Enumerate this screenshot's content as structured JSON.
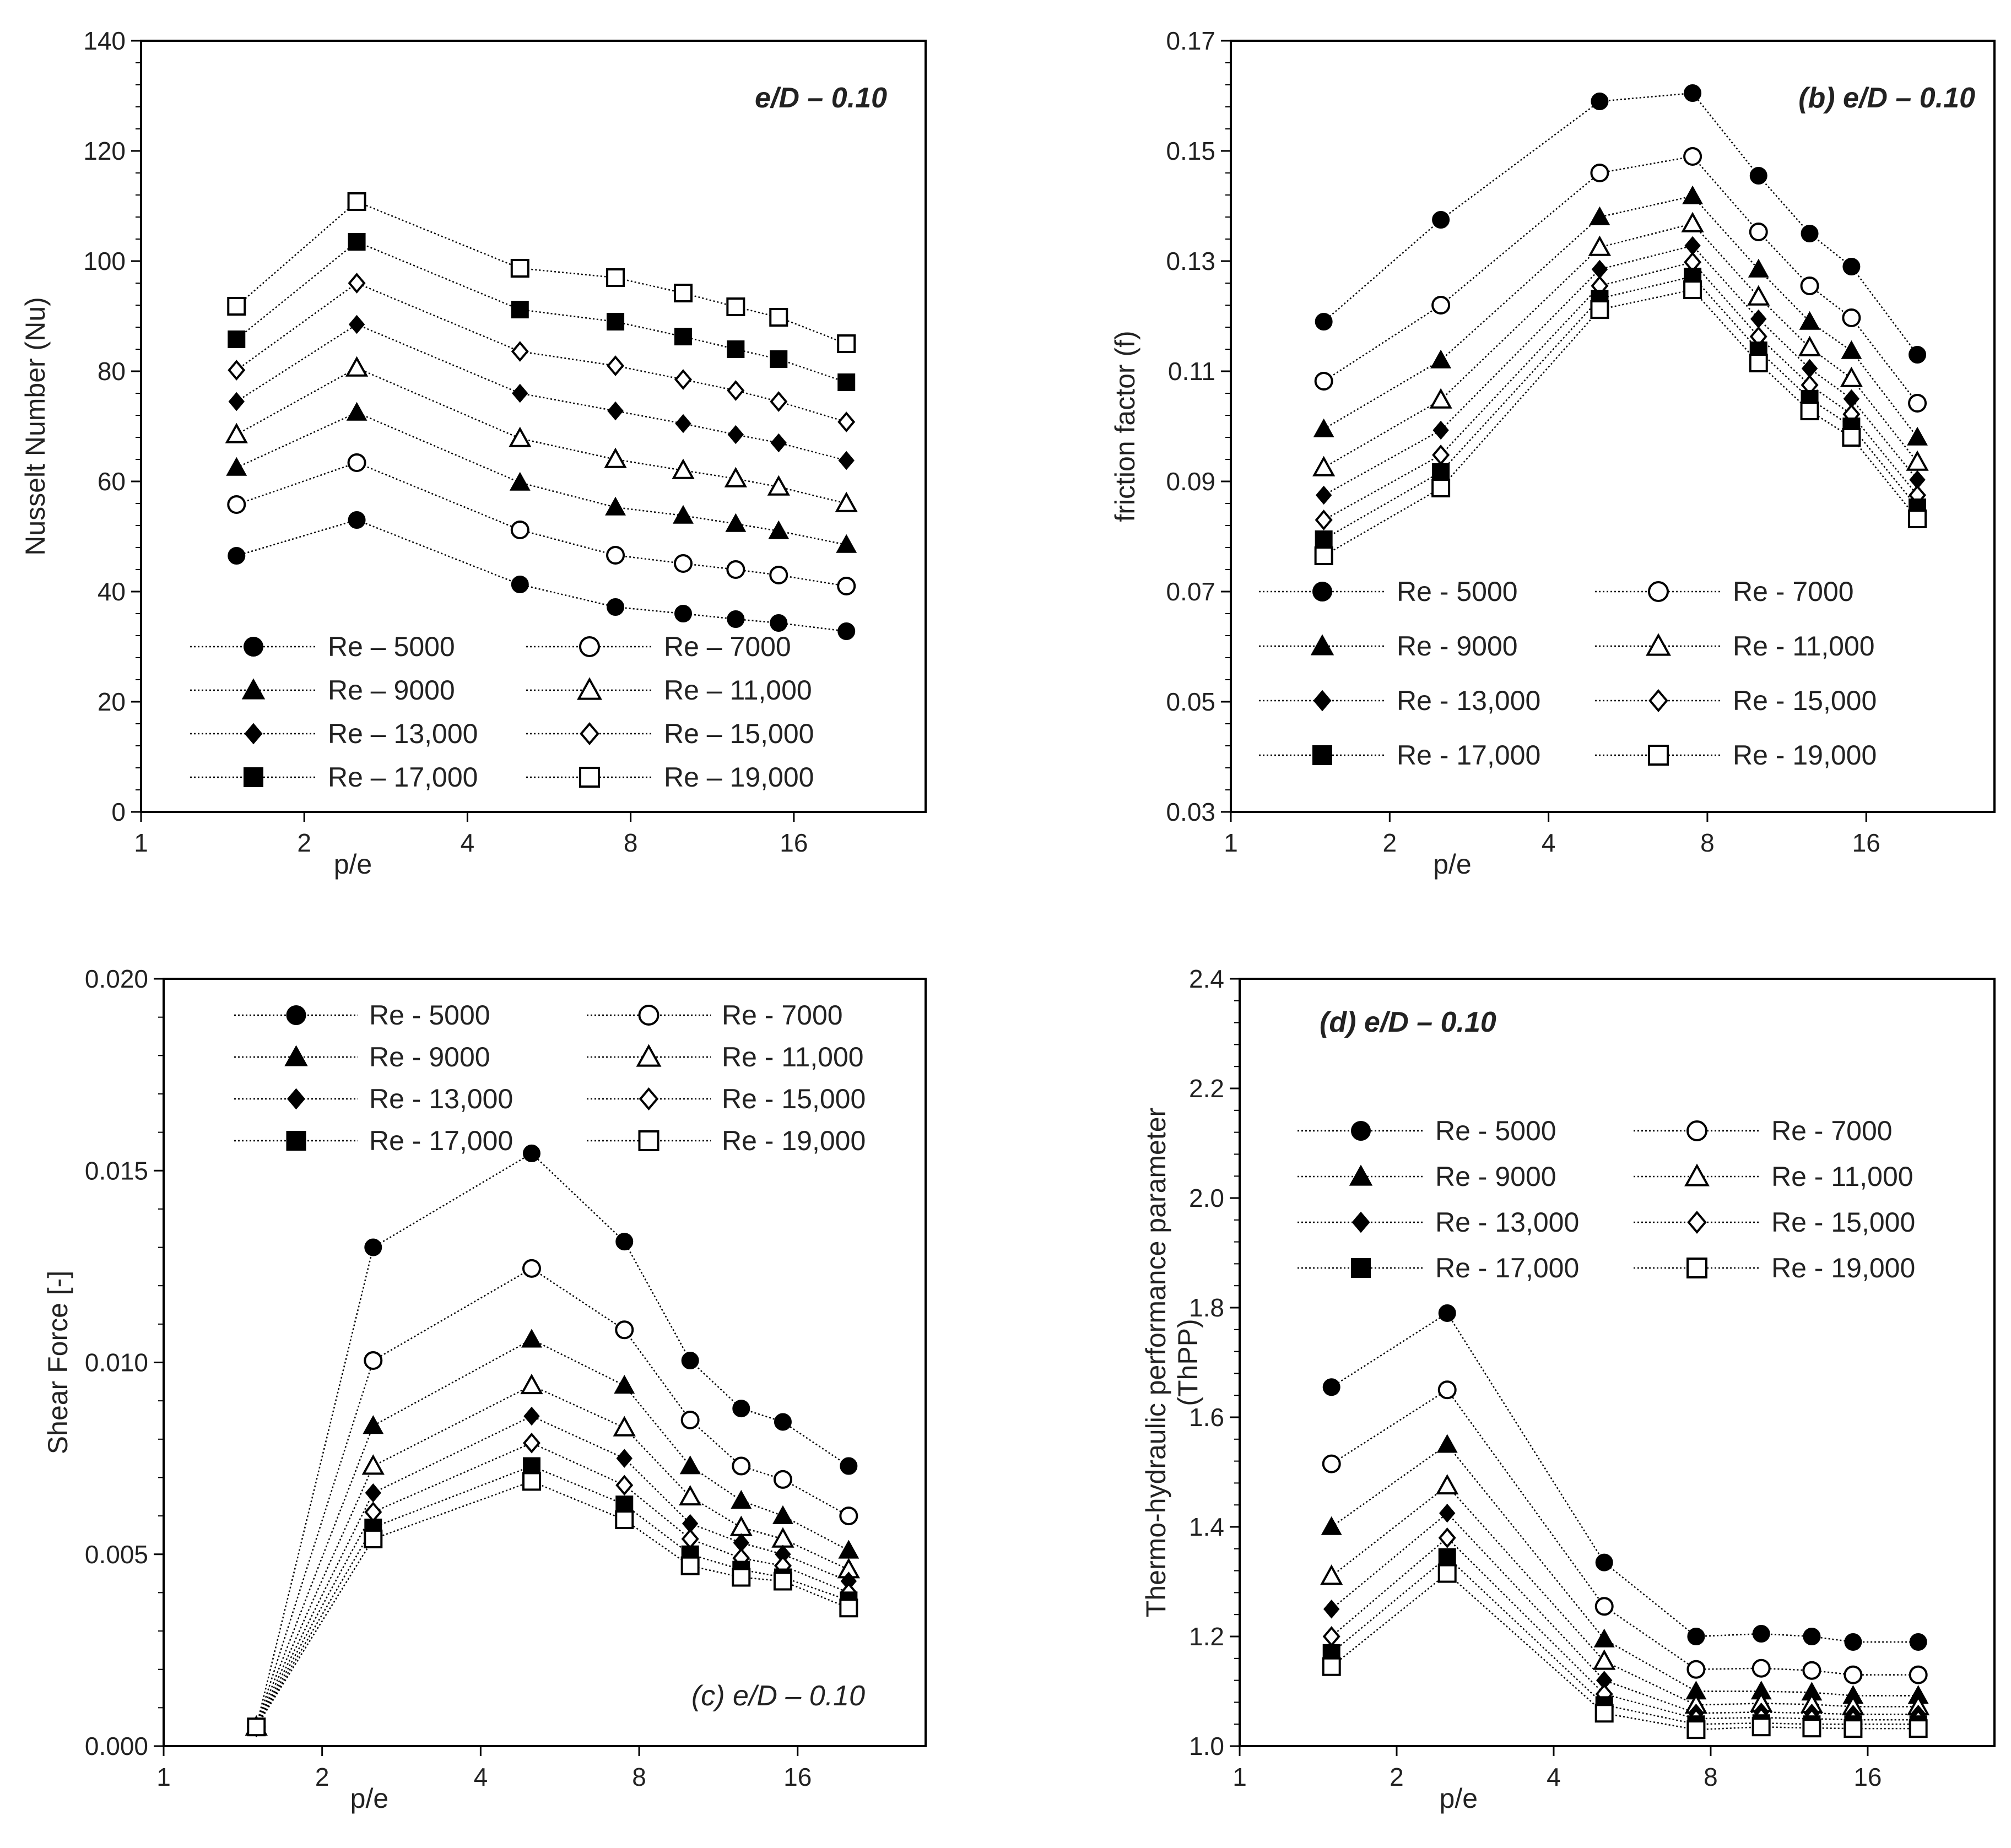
{
  "figure": {
    "colors": {
      "ink": "#000000",
      "text": "#222222",
      "background": "#ffffff"
    },
    "x_ticks": [
      1,
      2,
      4,
      8,
      16
    ],
    "re_series_names": [
      "Re - 5000",
      "Re - 7000",
      "Re - 9000",
      "Re - 11,000",
      "Re - 13,000",
      "Re - 15,000",
      "Re - 17,000",
      "Re - 19,000"
    ],
    "marker_styles": [
      "filled-circle",
      "open-circle",
      "filled-triangle",
      "open-triangle",
      "filled-diamond",
      "open-diamond",
      "filled-square",
      "open-square"
    ]
  },
  "chart_data": [
    {
      "id": "a",
      "type": "line",
      "title": "e/D – 0.10",
      "xlabel": "p/e",
      "ylabel": "Nusselt Number (Nu)",
      "xscale": "log2",
      "xlim": [
        1,
        28
      ],
      "ylim": [
        0,
        140
      ],
      "yticks": [
        0,
        20,
        40,
        60,
        80,
        100,
        120,
        140
      ],
      "ytick_labels": [
        "0",
        "20",
        "40",
        "60",
        "80",
        "100",
        "120",
        "140"
      ],
      "xtick_labels": [
        "1",
        "2",
        "4",
        "8",
        "16"
      ],
      "legend_position": "bottom-left",
      "legend_labels": [
        "Re – 5000",
        "Re – 7000",
        "Re – 9000",
        "Re – 11,000",
        "Re – 13,000",
        "Re – 15,000",
        "Re – 17,000",
        "Re – 19,000"
      ],
      "x": [
        1.5,
        2.5,
        5.0,
        7.5,
        10.0,
        12.5,
        15.0,
        20.0
      ],
      "series": [
        {
          "name": "Re – 5000",
          "marker": "filled-circle",
          "values": [
            46.5,
            53.0,
            41.3,
            37.2,
            36.0,
            35.0,
            34.3,
            32.8
          ]
        },
        {
          "name": "Re – 7000",
          "marker": "open-circle",
          "values": [
            55.8,
            63.4,
            51.2,
            46.6,
            45.1,
            44.0,
            43.0,
            41.0
          ]
        },
        {
          "name": "Re – 9000",
          "marker": "filled-triangle",
          "values": [
            62.5,
            72.5,
            59.8,
            55.3,
            53.8,
            52.3,
            51.0,
            48.5
          ]
        },
        {
          "name": "Re – 11,000",
          "marker": "open-triangle",
          "values": [
            68.5,
            80.6,
            67.8,
            64.0,
            62.0,
            60.5,
            59.0,
            56.0
          ]
        },
        {
          "name": "Re – 13,000",
          "marker": "filled-diamond",
          "values": [
            74.5,
            88.5,
            76.0,
            72.8,
            70.5,
            68.5,
            67.0,
            63.8
          ]
        },
        {
          "name": "Re – 15,000",
          "marker": "open-diamond",
          "values": [
            80.2,
            96.0,
            83.6,
            81.0,
            78.5,
            76.5,
            74.5,
            70.8
          ]
        },
        {
          "name": "Re – 17,000",
          "marker": "filled-square",
          "values": [
            85.8,
            103.5,
            91.2,
            89.0,
            86.3,
            84.0,
            82.2,
            78.0
          ]
        },
        {
          "name": "Re – 19,000",
          "marker": "open-square",
          "values": [
            91.8,
            110.8,
            98.7,
            97.0,
            94.2,
            91.7,
            89.8,
            85.0
          ]
        }
      ]
    },
    {
      "id": "b",
      "type": "line",
      "title": "(b) e/D – 0.10",
      "xlabel": "p/e",
      "ylabel": "friction factor (f)",
      "xscale": "log2",
      "xlim": [
        1,
        28
      ],
      "ylim": [
        0.03,
        0.17
      ],
      "yticks": [
        0.03,
        0.05,
        0.07,
        0.09,
        0.11,
        0.13,
        0.15,
        0.17
      ],
      "ytick_labels": [
        "0.03",
        "0.05",
        "0.07",
        "0.09",
        "0.11",
        "0.13",
        "0.15",
        "0.17"
      ],
      "xtick_labels": [
        "1",
        "2",
        "4",
        "8",
        "16"
      ],
      "legend_position": "bottom-left",
      "legend_labels": [
        "Re - 5000",
        "Re - 7000",
        "Re - 9000",
        "Re - 11,000",
        "Re - 13,000",
        "Re - 15,000",
        "Re - 17,000",
        "Re - 19,000"
      ],
      "x": [
        1.5,
        2.5,
        5.0,
        7.5,
        10.0,
        12.5,
        15.0,
        20.0
      ],
      "series": [
        {
          "name": "Re - 5000",
          "marker": "filled-circle",
          "values": [
            0.119,
            0.1375,
            0.159,
            0.1605,
            0.1455,
            0.135,
            0.129,
            0.113
          ]
        },
        {
          "name": "Re - 7000",
          "marker": "open-circle",
          "values": [
            0.1082,
            0.122,
            0.146,
            0.149,
            0.1353,
            0.1255,
            0.1197,
            0.1042
          ]
        },
        {
          "name": "Re - 9000",
          "marker": "filled-triangle",
          "values": [
            0.0995,
            0.112,
            0.138,
            0.1418,
            0.1285,
            0.119,
            0.1137,
            0.098
          ]
        },
        {
          "name": "Re - 11,000",
          "marker": "open-triangle",
          "values": [
            0.0925,
            0.1048,
            0.1325,
            0.1368,
            0.1235,
            0.1143,
            0.1087,
            0.0935
          ]
        },
        {
          "name": "Re - 13,000",
          "marker": "filled-diamond",
          "values": [
            0.0875,
            0.0993,
            0.1285,
            0.1328,
            0.1195,
            0.1105,
            0.105,
            0.0903
          ]
        },
        {
          "name": "Re - 15,000",
          "marker": "open-diamond",
          "values": [
            0.083,
            0.0948,
            0.1255,
            0.1298,
            0.1163,
            0.1075,
            0.1022,
            0.0875
          ]
        },
        {
          "name": "Re - 17,000",
          "marker": "filled-square",
          "values": [
            0.0795,
            0.0917,
            0.1232,
            0.1272,
            0.1138,
            0.105,
            0.1,
            0.0853
          ]
        },
        {
          "name": "Re - 19,000",
          "marker": "open-square",
          "values": [
            0.0765,
            0.0888,
            0.1212,
            0.1248,
            0.1115,
            0.1028,
            0.098,
            0.0832
          ]
        }
      ]
    },
    {
      "id": "c",
      "type": "line",
      "title": "(c) e/D – 0.10",
      "xlabel": "p/e",
      "ylabel": "Shear Force [-]",
      "xscale": "log2",
      "xlim": [
        1,
        28
      ],
      "ylim": [
        0,
        0.02
      ],
      "yticks": [
        0,
        0.005,
        0.01,
        0.015,
        0.02
      ],
      "ytick_labels": [
        "0.000",
        "0.005",
        "0.010",
        "0.015",
        "0.020"
      ],
      "xtick_labels": [
        "1",
        "2",
        "4",
        "8",
        "16"
      ],
      "legend_position": "top-left",
      "legend_labels": [
        "Re - 5000",
        "Re - 7000",
        "Re - 9000",
        "Re - 11,000",
        "Re - 13,000",
        "Re - 15,000",
        "Re - 17,000",
        "Re - 19,000"
      ],
      "x": [
        1.5,
        2.5,
        5.0,
        7.5,
        10.0,
        12.5,
        15.0,
        20.0
      ],
      "series": [
        {
          "name": "Re - 5000",
          "marker": "filled-circle",
          "values": [
            0.0005,
            0.013,
            0.01545,
            0.01315,
            0.01005,
            0.0088,
            0.00845,
            0.0073
          ]
        },
        {
          "name": "Re - 7000",
          "marker": "open-circle",
          "values": [
            0.0005,
            0.01005,
            0.01245,
            0.01085,
            0.0085,
            0.0073,
            0.00695,
            0.006
          ]
        },
        {
          "name": "Re - 9000",
          "marker": "filled-triangle",
          "values": [
            0.0005,
            0.00835,
            0.0106,
            0.0094,
            0.0073,
            0.0064,
            0.006,
            0.0051
          ]
        },
        {
          "name": "Re - 11,000",
          "marker": "open-triangle",
          "values": [
            0.0005,
            0.0073,
            0.0094,
            0.0083,
            0.0065,
            0.0057,
            0.0054,
            0.0046
          ]
        },
        {
          "name": "Re - 13,000",
          "marker": "filled-diamond",
          "values": [
            0.0005,
            0.0066,
            0.0086,
            0.0075,
            0.0058,
            0.0053,
            0.005,
            0.0043
          ]
        },
        {
          "name": "Re - 15,000",
          "marker": "open-diamond",
          "values": [
            0.0005,
            0.0061,
            0.0079,
            0.0068,
            0.0054,
            0.0049,
            0.0047,
            0.004
          ]
        },
        {
          "name": "Re - 17,000",
          "marker": "filled-square",
          "values": [
            0.0005,
            0.0057,
            0.0073,
            0.0063,
            0.005,
            0.0046,
            0.0044,
            0.0038
          ]
        },
        {
          "name": "Re - 19,000",
          "marker": "open-square",
          "values": [
            0.0005,
            0.0054,
            0.0069,
            0.0059,
            0.0047,
            0.0044,
            0.0043,
            0.0036
          ]
        }
      ]
    },
    {
      "id": "d",
      "type": "line",
      "title": "(d) e/D – 0.10",
      "xlabel": "p/e",
      "ylabel": "Thermo-hydraulic performance parameter (ThPP)",
      "ylabel_lines": [
        "Thermo-hydraulic performance parameter",
        "(ThPP)"
      ],
      "xscale": "log2",
      "xlim": [
        1,
        28
      ],
      "ylim": [
        1.0,
        2.4
      ],
      "yticks": [
        1.0,
        1.2,
        1.4,
        1.6,
        1.8,
        2.0,
        2.2,
        2.4
      ],
      "ytick_labels": [
        "1.0",
        "1.2",
        "1.4",
        "1.6",
        "1.8",
        "2.0",
        "2.2",
        "2.4"
      ],
      "xtick_labels": [
        "1",
        "2",
        "4",
        "8",
        "16"
      ],
      "legend_position": "top-left",
      "legend_labels": [
        "Re - 5000",
        "Re - 7000",
        "Re - 9000",
        "Re - 11,000",
        "Re - 13,000",
        "Re - 15,000",
        "Re - 17,000",
        "Re - 19,000"
      ],
      "x": [
        1.5,
        2.5,
        5.0,
        7.5,
        10.0,
        12.5,
        15.0,
        20.0
      ],
      "series": [
        {
          "name": "Re - 5000",
          "marker": "filled-circle",
          "values": [
            1.655,
            1.79,
            1.335,
            1.2,
            1.205,
            1.2,
            1.19,
            1.19
          ]
        },
        {
          "name": "Re - 7000",
          "marker": "open-circle",
          "values": [
            1.515,
            1.65,
            1.255,
            1.14,
            1.142,
            1.138,
            1.13,
            1.13
          ]
        },
        {
          "name": "Re - 9000",
          "marker": "filled-triangle",
          "values": [
            1.4,
            1.55,
            1.195,
            1.1,
            1.1,
            1.098,
            1.092,
            1.092
          ]
        },
        {
          "name": "Re - 11,000",
          "marker": "open-triangle",
          "values": [
            1.31,
            1.475,
            1.155,
            1.075,
            1.078,
            1.076,
            1.072,
            1.072
          ]
        },
        {
          "name": "Re - 13,000",
          "marker": "filled-diamond",
          "values": [
            1.25,
            1.425,
            1.12,
            1.06,
            1.062,
            1.06,
            1.058,
            1.058
          ]
        },
        {
          "name": "Re - 15,000",
          "marker": "open-diamond",
          "values": [
            1.2,
            1.38,
            1.095,
            1.05,
            1.052,
            1.05,
            1.048,
            1.048
          ]
        },
        {
          "name": "Re - 17,000",
          "marker": "filled-square",
          "values": [
            1.17,
            1.345,
            1.075,
            1.04,
            1.042,
            1.04,
            1.04,
            1.04
          ]
        },
        {
          "name": "Re - 19,000",
          "marker": "open-square",
          "values": [
            1.145,
            1.315,
            1.06,
            1.03,
            1.035,
            1.033,
            1.032,
            1.032
          ]
        }
      ]
    }
  ]
}
